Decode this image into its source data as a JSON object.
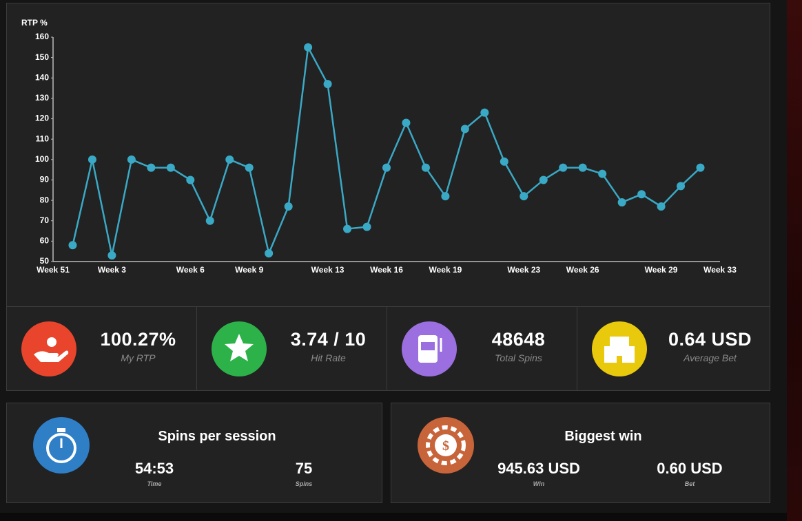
{
  "chart_data": {
    "type": "line",
    "y_label": "RTP %",
    "categories": [
      "Week 51",
      null,
      null,
      "Week 3",
      null,
      null,
      null,
      "Week 6",
      null,
      null,
      "Week 9",
      null,
      null,
      null,
      "Week 13",
      null,
      null,
      "Week 16",
      null,
      null,
      "Week 19",
      null,
      null,
      null,
      "Week 23",
      null,
      null,
      "Week 26",
      null,
      null,
      null,
      "Week 29",
      null,
      null,
      "Week 33"
    ],
    "values": [
      null,
      58,
      100,
      53,
      100,
      96,
      96,
      90,
      70,
      100,
      96,
      54,
      77,
      155,
      137,
      66,
      67,
      96,
      118,
      96,
      82,
      115,
      123,
      99,
      82,
      90,
      96,
      96,
      93,
      79,
      83,
      77,
      87,
      96,
      null
    ],
    "color": "#3aa9c6",
    "ylim": [
      50,
      160
    ],
    "yticks": [
      50,
      60,
      70,
      80,
      90,
      100,
      110,
      120,
      130,
      140,
      150,
      160
    ],
    "grid": false
  },
  "stats": [
    {
      "value": "100.27%",
      "label": "My RTP"
    },
    {
      "value": "3.74 / 10",
      "label": "Hit Rate"
    },
    {
      "value": "48648",
      "label": "Total Spins"
    },
    {
      "value": "0.64 USD",
      "label": "Average Bet"
    }
  ],
  "panels": [
    {
      "title": "Spins per session",
      "items": [
        {
          "value": "54:53",
          "label": "Time"
        },
        {
          "value": "75",
          "label": "Spins"
        }
      ]
    },
    {
      "title": "Biggest win",
      "items": [
        {
          "value": "945.63 USD",
          "label": "Win"
        },
        {
          "value": "0.60 USD",
          "label": "Bet"
        }
      ]
    }
  ]
}
